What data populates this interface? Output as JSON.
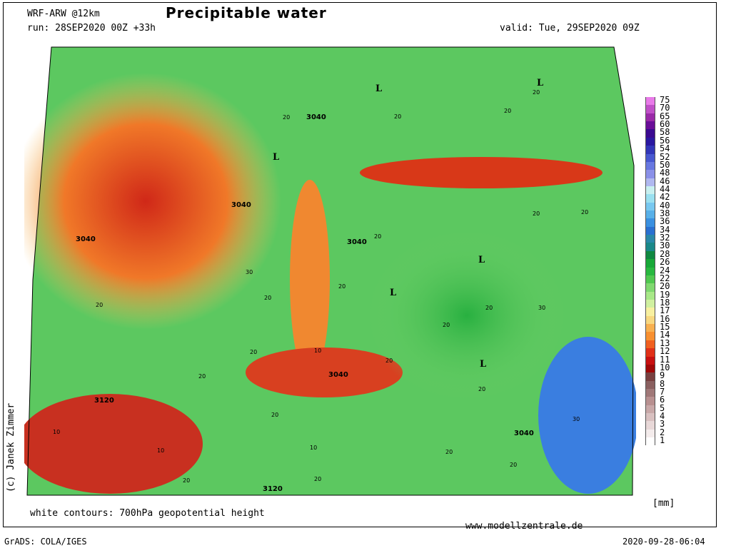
{
  "header": {
    "model": "WRF-ARW @12km",
    "title": "Precipitable water",
    "run": "run: 28SEP2020 00Z +33h",
    "valid": "valid: Tue, 29SEP2020 09Z"
  },
  "legend": {
    "unit": "[mm]",
    "levels": [
      {
        "label": "75",
        "color": "#e87ae8"
      },
      {
        "label": "70",
        "color": "#c050c8"
      },
      {
        "label": "65",
        "color": "#9a2aa8"
      },
      {
        "label": "60",
        "color": "#6a0e98"
      },
      {
        "label": "58",
        "color": "#3a0a90"
      },
      {
        "label": "56",
        "color": "#2a18a0"
      },
      {
        "label": "54",
        "color": "#3236b8"
      },
      {
        "label": "52",
        "color": "#4858d0"
      },
      {
        "label": "50",
        "color": "#6878e0"
      },
      {
        "label": "48",
        "color": "#8a90e8"
      },
      {
        "label": "46",
        "color": "#b0b8f0"
      },
      {
        "label": "44",
        "color": "#c8f0f0"
      },
      {
        "label": "42",
        "color": "#9ae0f0"
      },
      {
        "label": "40",
        "color": "#78c8f0"
      },
      {
        "label": "38",
        "color": "#58b0e8"
      },
      {
        "label": "36",
        "color": "#3a90e0"
      },
      {
        "label": "34",
        "color": "#2a70d0"
      },
      {
        "label": "32",
        "color": "#2a88a8"
      },
      {
        "label": "30",
        "color": "#1a8888"
      },
      {
        "label": "28",
        "color": "#108840"
      },
      {
        "label": "26",
        "color": "#18a838"
      },
      {
        "label": "24",
        "color": "#28b840"
      },
      {
        "label": "22",
        "color": "#50c850"
      },
      {
        "label": "20",
        "color": "#80d870"
      },
      {
        "label": "19",
        "color": "#a8e888"
      },
      {
        "label": "18",
        "color": "#d0f0a0"
      },
      {
        "label": "17",
        "color": "#f8f0a0"
      },
      {
        "label": "16",
        "color": "#f8d880"
      },
      {
        "label": "15",
        "color": "#f8b050"
      },
      {
        "label": "14",
        "color": "#f89030"
      },
      {
        "label": "13",
        "color": "#f06020"
      },
      {
        "label": "12",
        "color": "#e03018"
      },
      {
        "label": "11",
        "color": "#c81010"
      },
      {
        "label": "10",
        "color": "#a00808"
      },
      {
        "label": "9",
        "color": "#784040"
      },
      {
        "label": "8",
        "color": "#8a6060"
      },
      {
        "label": "7",
        "color": "#a07878"
      },
      {
        "label": "6",
        "color": "#b89090"
      },
      {
        "label": "5",
        "color": "#c8a8a8"
      },
      {
        "label": "4",
        "color": "#d8c0c0"
      },
      {
        "label": "3",
        "color": "#e8d8d8"
      },
      {
        "label": "2",
        "color": "#f4ecec"
      },
      {
        "label": "1",
        "color": "#ffffff"
      }
    ]
  },
  "map": {
    "contour_labels": [
      "3040",
      "3040",
      "3040",
      "3040",
      "3040",
      "3040",
      "3120",
      "3120"
    ],
    "pw_labels": [
      "20",
      "20",
      "20",
      "20",
      "20",
      "20",
      "20",
      "20",
      "20",
      "20",
      "20",
      "20",
      "20",
      "20",
      "20",
      "20",
      "20",
      "20",
      "20",
      "20",
      "20",
      "30",
      "30",
      "30",
      "10",
      "10",
      "10",
      "10"
    ],
    "low_markers": [
      "L",
      "L",
      "L",
      "L",
      "L",
      "L"
    ]
  },
  "footer": {
    "contour_note": "white contours: 700hPa geopotential height",
    "website": "www.modellzentrale.de",
    "author": "(c) Janek Zimmer",
    "software": "GrADS: COLA/IGES",
    "timestamp": "2020-09-28-06:04"
  }
}
